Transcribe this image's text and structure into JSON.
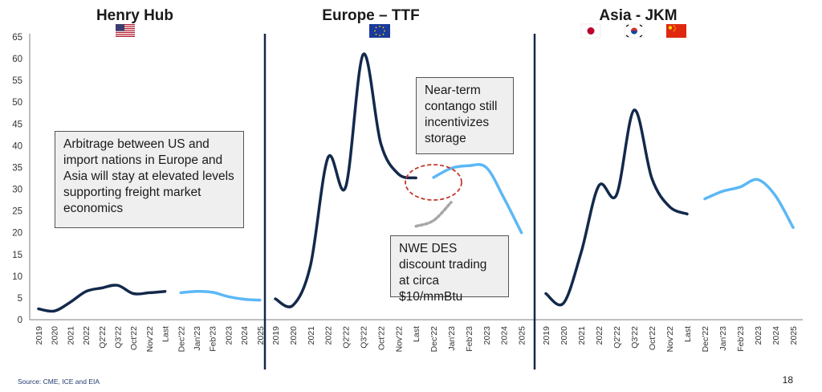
{
  "chart_data": [
    {
      "type": "line",
      "title": "Henry Hub",
      "flag_icons": [
        "us-flag-icon"
      ],
      "categories": [
        "2019",
        "2020",
        "2021",
        "2022",
        "Q2'22",
        "Q3'22",
        "Oct'22",
        "Nov'22",
        "Last",
        "Dec'22",
        "Jan'23",
        "Feb'23",
        "2023",
        "2024",
        "2025"
      ],
      "series": [
        {
          "kind": "historical",
          "color": "#13294b",
          "x": [
            "2019",
            "2020",
            "2021",
            "2022",
            "Q2'22",
            "Q3'22",
            "Oct'22",
            "Nov'22",
            "Last"
          ],
          "values": [
            2.5,
            2.0,
            4.0,
            6.5,
            7.3,
            7.9,
            6.0,
            6.2,
            6.5
          ]
        },
        {
          "kind": "forward",
          "color": "#5bb8f5",
          "x": [
            "Dec'22",
            "Jan'23",
            "Feb'23",
            "2023",
            "2024",
            "2025"
          ],
          "values": [
            6.2,
            6.5,
            6.3,
            5.3,
            4.7,
            4.5
          ]
        }
      ],
      "ylim": [
        0,
        65
      ],
      "yticks": [
        0,
        5,
        10,
        15,
        20,
        25,
        30,
        35,
        40,
        45,
        50,
        55,
        60,
        65
      ]
    },
    {
      "type": "line",
      "title": "Europe – TTF",
      "flag_icons": [
        "eu-flag-icon"
      ],
      "categories": [
        "2019",
        "2020",
        "2021",
        "2022",
        "Q2'22",
        "Q3'22",
        "Oct'22",
        "Nov'22",
        "Last",
        "Dec'22",
        "Jan'23",
        "Feb'23",
        "2023",
        "2024",
        "2025"
      ],
      "series": [
        {
          "kind": "historical",
          "color": "#13294b",
          "x": [
            "2019",
            "2020",
            "2021",
            "2022",
            "Q2'22",
            "Q3'22",
            "Oct'22",
            "Nov'22",
            "Last"
          ],
          "values": [
            4.8,
            3.3,
            12.5,
            37.3,
            30.5,
            61.0,
            40.5,
            33.5,
            32.6
          ]
        },
        {
          "kind": "forward",
          "color": "#5bb8f5",
          "x": [
            "Dec'22",
            "Jan'23",
            "Feb'23",
            "2023",
            "2024",
            "2025"
          ],
          "values": [
            32.7,
            34.8,
            35.4,
            35.0,
            28.0,
            20.0
          ]
        },
        {
          "kind": "nwe-des-indicative",
          "color": "#a6a6a6",
          "x": [
            "Last",
            "Dec'22",
            "Jan'23"
          ],
          "values": [
            21.5,
            22.8,
            27.0
          ]
        }
      ],
      "ylim": [
        0,
        65
      ]
    },
    {
      "type": "line",
      "title": "Asia - JKM",
      "flag_icons": [
        "japan-flag-icon",
        "south-korea-flag-icon",
        "china-flag-icon"
      ],
      "categories": [
        "2019",
        "2020",
        "2021",
        "2022",
        "Q2'22",
        "Q3'22",
        "Oct'22",
        "Nov'22",
        "Last",
        "Dec'22",
        "Jan'23",
        "Feb'23",
        "2023",
        "2024",
        "2025"
      ],
      "series": [
        {
          "kind": "historical",
          "color": "#13294b",
          "x": [
            "2019",
            "2020",
            "2021",
            "2022",
            "Q2'22",
            "Q3'22",
            "Oct'22",
            "Nov'22",
            "Last"
          ],
          "values": [
            6.0,
            3.8,
            15.5,
            30.8,
            28.7,
            48.2,
            32.5,
            26.0,
            24.3
          ]
        },
        {
          "kind": "forward",
          "color": "#5bb8f5",
          "x": [
            "Dec'22",
            "Jan'23",
            "Feb'23",
            "2023",
            "2024",
            "2025"
          ],
          "values": [
            27.8,
            29.5,
            30.5,
            32.2,
            28.5,
            21.2
          ]
        }
      ],
      "ylim": [
        0,
        65
      ]
    }
  ],
  "annotations": {
    "arbitrage": "Arbitrage between US and import nations in Europe and Asia will stay at elevated levels supporting freight market economics",
    "contango": "Near-term contango still incentivizes storage",
    "nwe_des": "NWE DES discount trading at circa $10/mmBtu"
  },
  "colors": {
    "historical": "#13294b",
    "forward": "#5bb8f5",
    "divider": "#13294b",
    "highlight": "#c0392b",
    "nwe_des": "#a6a6a6"
  },
  "footer": {
    "source": "Source: CME, ICE and EIA",
    "page_number": "18"
  }
}
